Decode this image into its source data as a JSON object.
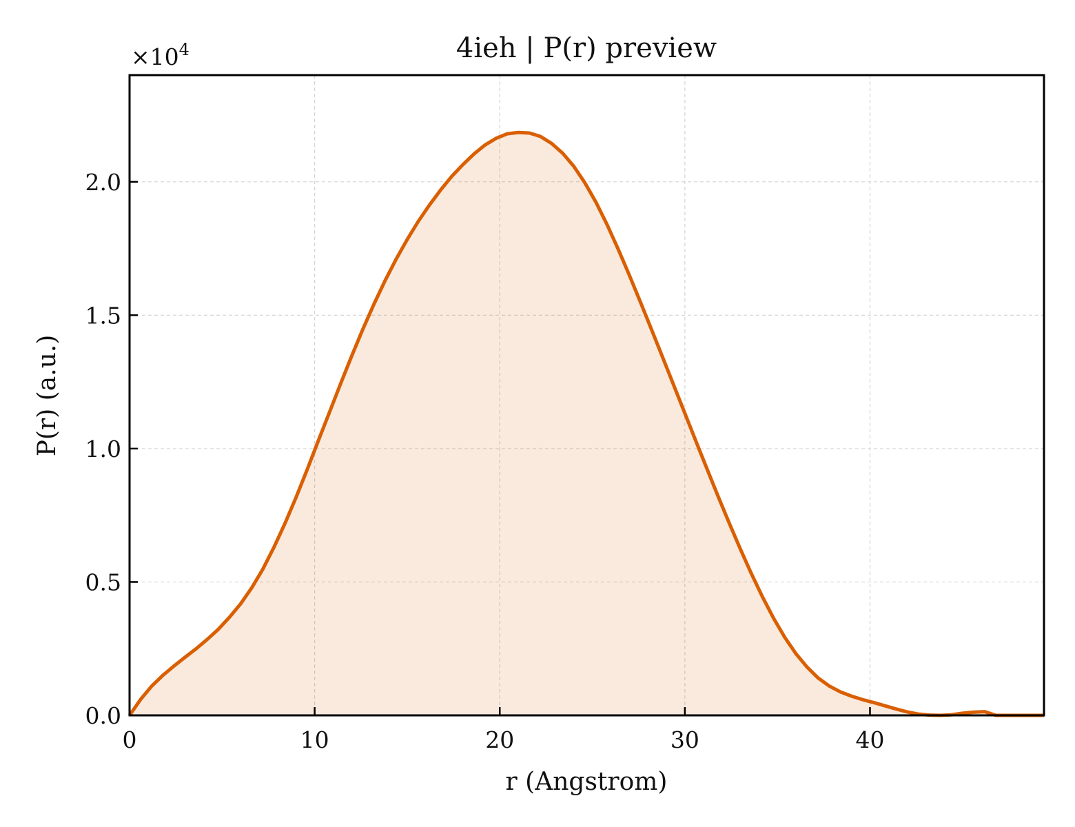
{
  "chart_data": {
    "type": "area",
    "title": "4ieh | P(r) preview",
    "xlabel": "r (Angstrom)",
    "ylabel": "P(r) (a.u.)",
    "y_multiplier": {
      "base": "×10",
      "exponent": "4"
    },
    "xlim": [
      0,
      49.4
    ],
    "ylim": [
      0,
      24000
    ],
    "x_ticks": [
      0,
      10,
      20,
      30,
      40
    ],
    "x_tick_labels": [
      "0",
      "10",
      "20",
      "30",
      "40"
    ],
    "y_ticks": [
      0,
      5000,
      10000,
      15000,
      20000
    ],
    "y_tick_labels": [
      "0.0",
      "0.5",
      "1.0",
      "1.5",
      "2.0"
    ],
    "grid": true,
    "legend": "none",
    "colors": {
      "line": "#d95f02",
      "fill": "#d95f02",
      "fill_opacity": 0.13
    },
    "series": [
      {
        "x": [
          0,
          0.6,
          1.2,
          1.8,
          2.4,
          3.0,
          3.6,
          4.2,
          4.8,
          5.4,
          6.0,
          6.6,
          7.2,
          7.8,
          8.4,
          9.0,
          9.6,
          10.2,
          10.8,
          11.4,
          12.0,
          12.6,
          13.2,
          13.8,
          14.4,
          15.0,
          15.6,
          16.2,
          16.8,
          17.4,
          18.0,
          18.6,
          19.2,
          19.8,
          20.4,
          21.0,
          21.6,
          22.2,
          22.8,
          23.4,
          24.0,
          24.6,
          25.2,
          25.8,
          26.4,
          27.0,
          27.6,
          28.2,
          28.8,
          29.4,
          30.0,
          30.6,
          31.2,
          31.8,
          32.4,
          33.0,
          33.6,
          34.2,
          34.8,
          35.4,
          36.0,
          36.6,
          37.2,
          37.8,
          38.4,
          39.0,
          39.6,
          40.2,
          40.8,
          41.4,
          42.0,
          42.6,
          43.2,
          43.8,
          44.4,
          45.0,
          45.6,
          46.2,
          46.8,
          47.4,
          48.0,
          48.6,
          49.0,
          49.4
        ],
        "y": [
          0,
          600,
          1100,
          1500,
          1850,
          2180,
          2500,
          2850,
          3230,
          3680,
          4180,
          4780,
          5480,
          6300,
          7200,
          8180,
          9220,
          10300,
          11360,
          12430,
          13470,
          14470,
          15410,
          16290,
          17100,
          17840,
          18520,
          19130,
          19690,
          20200,
          20640,
          21040,
          21380,
          21630,
          21800,
          21850,
          21830,
          21700,
          21440,
          21070,
          20580,
          19960,
          19230,
          18390,
          17470,
          16500,
          15490,
          14460,
          13420,
          12370,
          11320,
          10270,
          9230,
          8200,
          7200,
          6230,
          5300,
          4430,
          3630,
          2920,
          2310,
          1810,
          1400,
          1100,
          880,
          720,
          590,
          480,
          360,
          240,
          130,
          50,
          10,
          0,
          20,
          80,
          120,
          140,
          0,
          0,
          0,
          0,
          0,
          0
        ],
        "note_ignore": ""
      }
    ]
  }
}
